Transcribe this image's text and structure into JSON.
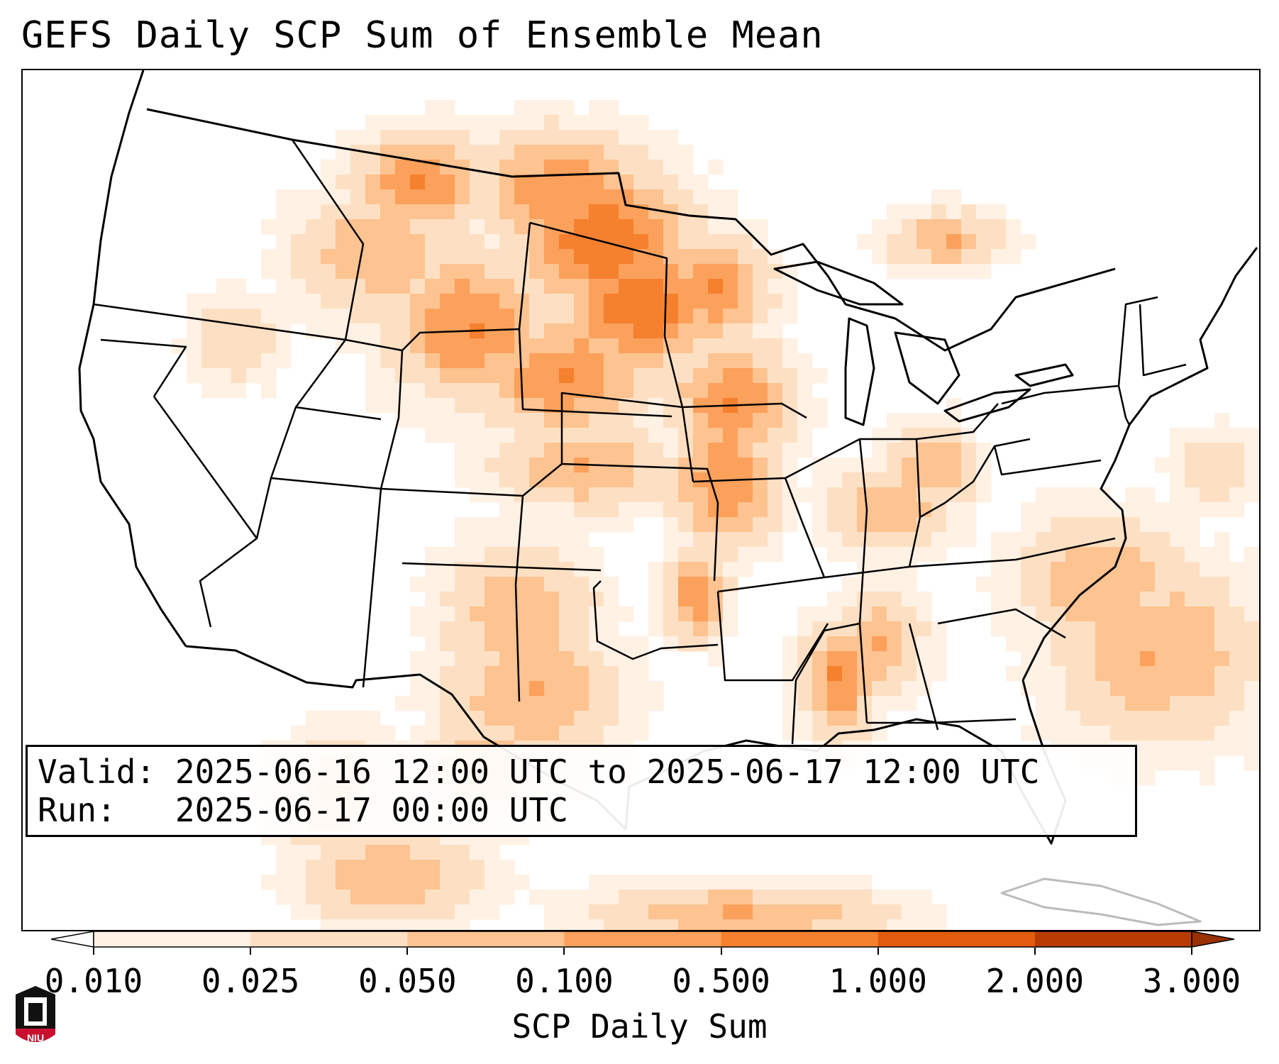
{
  "title": "GEFS Daily SCP Sum of Ensemble Mean",
  "valid_label": "Valid:",
  "valid_text": "2025-06-16 12:00 UTC to 2025-06-17 12:00 UTC",
  "run_label": "Run:",
  "run_text": "2025-06-17 00:00 UTC",
  "colorbar": {
    "label": "SCP Daily Sum",
    "ticks": [
      "0.010",
      "0.025",
      "0.050",
      "0.100",
      "0.500",
      "1.000",
      "2.000",
      "3.000"
    ],
    "colors": [
      "#fff1e4",
      "#fde0c3",
      "#fdc390",
      "#fba15c",
      "#f5802e",
      "#e35c0e",
      "#b83c02"
    ],
    "extend_low_color": "#ffffff",
    "extend_high_color": "#9a3102"
  },
  "logo_text": "NIU",
  "logo_colors": {
    "shield": "#c8102e",
    "tower": "#111111"
  }
}
